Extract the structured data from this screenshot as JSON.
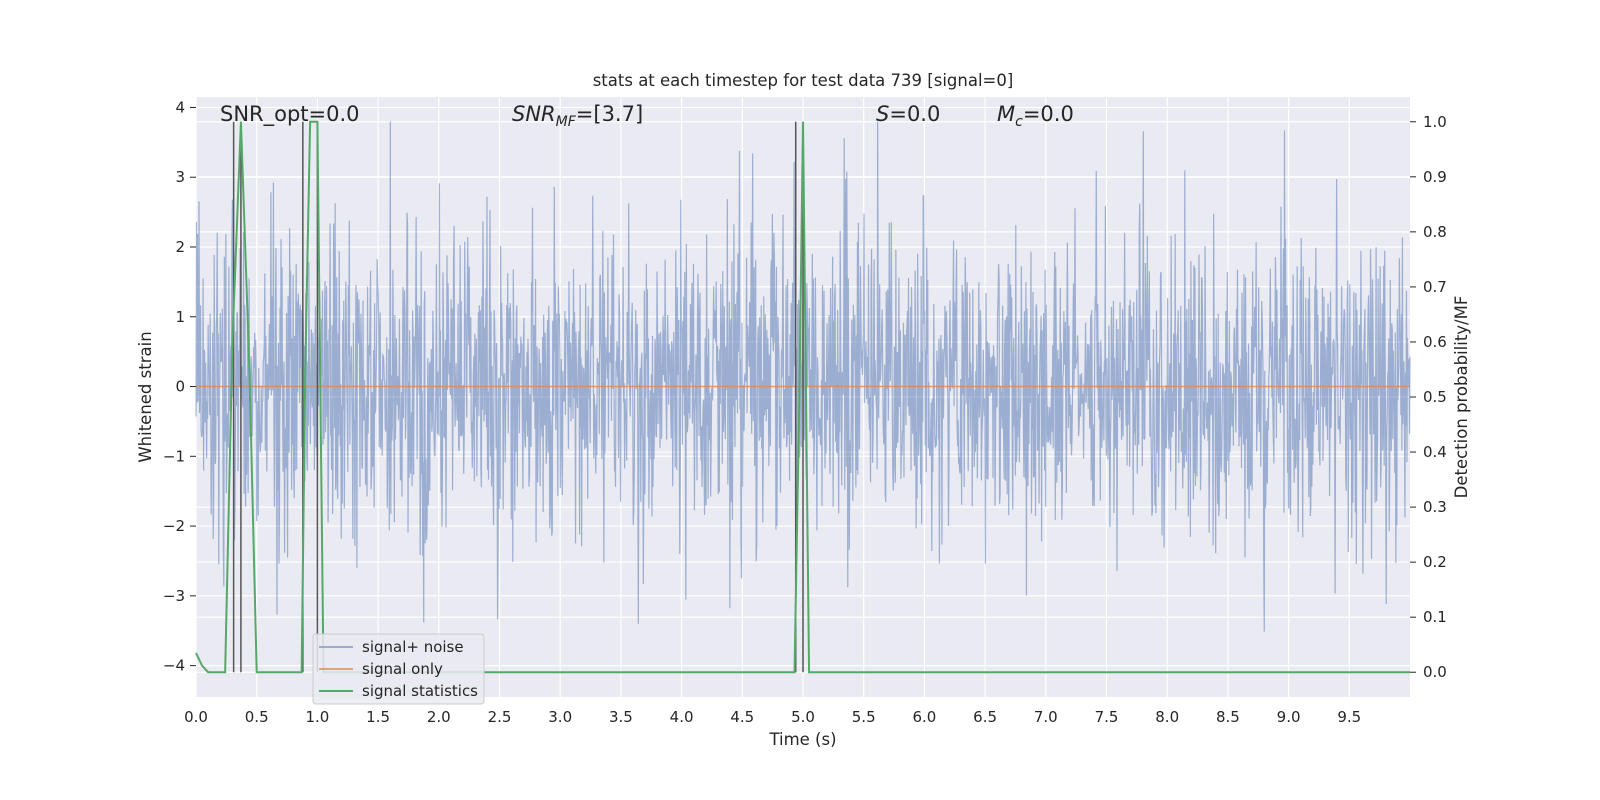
{
  "chart_data": {
    "type": "line",
    "title": "stats at each timestep for test data 739 [signal=0]",
    "xlabel": "Time (s)",
    "ylabel_left": "Whitened strain",
    "ylabel_right": "Detection probability/MF",
    "xlim": [
      0.0,
      10.0
    ],
    "ylim_left": [
      -4.45,
      4.15
    ],
    "ylim_right": [
      -0.045,
      1.045
    ],
    "x_ticks": [
      "0.0",
      "0.5",
      "1.0",
      "1.5",
      "2.0",
      "2.5",
      "3.0",
      "3.5",
      "4.0",
      "4.5",
      "5.0",
      "5.5",
      "6.0",
      "6.5",
      "7.0",
      "7.5",
      "8.0",
      "8.5",
      "9.0",
      "9.5"
    ],
    "y_ticks_left": [
      "−4",
      "−3",
      "−2",
      "−1",
      "0",
      "1",
      "2",
      "3",
      "4"
    ],
    "y_ticks_right": [
      "0.0",
      "0.1",
      "0.2",
      "0.3",
      "0.4",
      "0.5",
      "0.6",
      "0.7",
      "0.8",
      "0.9",
      "1.0"
    ],
    "grid": true,
    "legend_position": "lower-left",
    "colors": {
      "signal_noise": "#4c72b0",
      "signal_only": "#dd8452",
      "signal_statistics": "#55a868",
      "markers": "#555555",
      "background": "#eaeaf2",
      "grid": "#ffffff"
    },
    "series": [
      {
        "name": "signal+ noise",
        "axis": "left",
        "description_range": [
          -4.0,
          3.8
        ]
      },
      {
        "name": "signal only",
        "axis": "left",
        "x": [
          0.0,
          10.0
        ],
        "y": [
          0.0,
          0.0
        ]
      },
      {
        "name": "signal statistics",
        "axis": "right",
        "x": [
          0.0,
          0.05,
          0.1,
          0.24,
          0.3,
          0.37,
          0.44,
          0.5,
          0.87,
          0.9,
          0.94,
          1.0,
          1.05,
          4.93,
          4.97,
          5.0,
          5.05,
          10.0
        ],
        "y": [
          0.035,
          0.012,
          0.0,
          0.0,
          0.6,
          1.0,
          0.55,
          0.0,
          0.0,
          0.55,
          1.0,
          1.0,
          0.0,
          0.0,
          0.5,
          1.0,
          0.0,
          0.0
        ]
      }
    ],
    "vertical_markers": [
      0.31,
      0.37,
      0.88,
      1.0,
      4.94,
      5.0
    ],
    "annotations": {
      "snr_opt": "SNR_opt=0.0",
      "snr_mf_name": "SNR",
      "snr_mf_sub": "MF",
      "snr_mf_value": "=[3.7]",
      "s_name": "S",
      "s_value": "=0.0",
      "mc_name": "M",
      "mc_sub": "c",
      "mc_value": "=0.0"
    }
  },
  "legend": [
    {
      "label": "signal+ noise",
      "color": "#4c72b0"
    },
    {
      "label": "signal only",
      "color": "#dd8452"
    },
    {
      "label": "signal statistics",
      "color": "#55a868"
    }
  ]
}
